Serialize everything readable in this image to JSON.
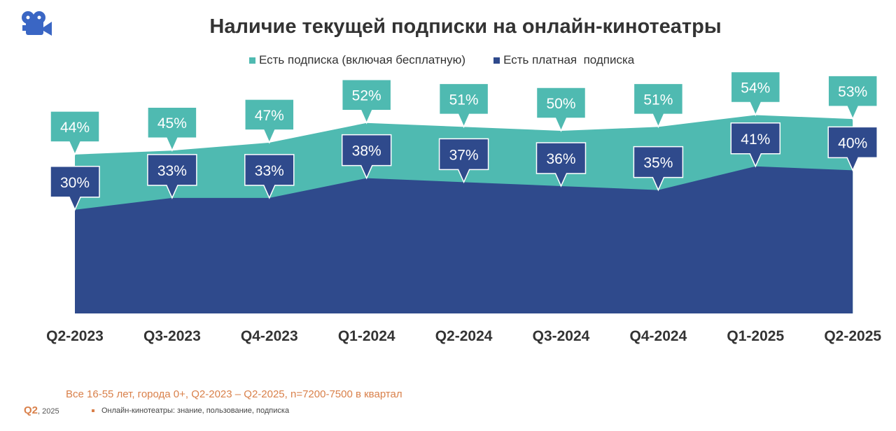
{
  "chart_data": {
    "type": "area",
    "title": "Наличие текущей подписки на онлайн-кинотеатры",
    "categories": [
      "Q2-2023",
      "Q3-2023",
      "Q4-2023",
      "Q1-2024",
      "Q2-2024",
      "Q3-2024",
      "Q4-2024",
      "Q1-2025",
      "Q2-2025"
    ],
    "series": [
      {
        "name": "Есть подписка (включая бесплатную)",
        "values": [
          44,
          45,
          47,
          52,
          51,
          50,
          51,
          54,
          53
        ],
        "color": "#4fbab1"
      },
      {
        "name": "Есть платная  подписка",
        "values": [
          30,
          33,
          33,
          38,
          37,
          36,
          35,
          41,
          40
        ],
        "color": "#2f4a8c"
      }
    ],
    "unit": "%",
    "legend": "top",
    "grid": false
  },
  "footer": {
    "note": "Все 16-55 лет,  города 0+, Q2-2023 – Q2-2025, n=7200-7500 в квартал",
    "wave": "Q2",
    "year": ", 2025",
    "source": "Онлайн-кинотеатры: знание, пользование, подписка"
  },
  "icons": {
    "logo": "movie-camera-icon"
  }
}
